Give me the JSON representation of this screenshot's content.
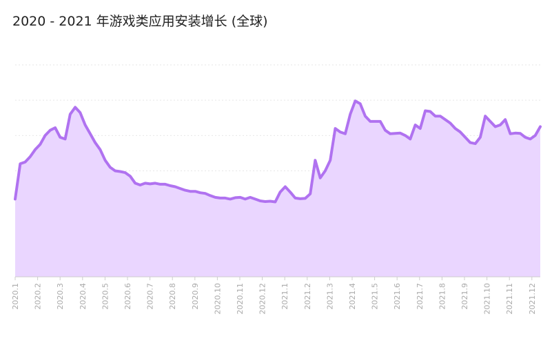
{
  "chart_data": {
    "type": "area",
    "title": "2020 - 2021 年游戏类应用安装增长 (全球)",
    "xlabel": "",
    "ylabel": "",
    "grid": true,
    "legend": "none",
    "color": "#b072f0",
    "fill_color": "#ead6ff",
    "x_ticks": [
      "2020.1",
      "2020.2",
      "2020.3",
      "2020.4",
      "2020.5",
      "2020.6",
      "2020.7",
      "2020.8",
      "2020.9",
      "2020.10",
      "2020.11",
      "2020.12",
      "2021.1",
      "2021.2",
      "2021.3",
      "2021.4",
      "2021.5",
      "2021.6",
      "2021.7",
      "2021.8",
      "2021.9",
      "2021.10",
      "2021.11",
      "2021.12"
    ],
    "ylim": [
      0,
      6
    ],
    "series": [
      {
        "name": "",
        "values": [
          2.2,
          3.2,
          3.25,
          3.4,
          3.6,
          3.75,
          4.0,
          4.15,
          4.22,
          3.95,
          3.9,
          4.6,
          4.8,
          4.65,
          4.3,
          4.05,
          3.8,
          3.6,
          3.3,
          3.1,
          3.0,
          2.98,
          2.95,
          2.85,
          2.65,
          2.6,
          2.65,
          2.63,
          2.65,
          2.62,
          2.62,
          2.58,
          2.55,
          2.5,
          2.45,
          2.42,
          2.42,
          2.38,
          2.36,
          2.3,
          2.25,
          2.23,
          2.23,
          2.2,
          2.24,
          2.25,
          2.2,
          2.25,
          2.2,
          2.15,
          2.13,
          2.14,
          2.12,
          2.4,
          2.55,
          2.4,
          2.23,
          2.21,
          2.22,
          2.35,
          3.3,
          2.8,
          3.0,
          3.3,
          4.2,
          4.1,
          4.05,
          4.6,
          4.98,
          4.9,
          4.55,
          4.4,
          4.4,
          4.4,
          4.15,
          4.05,
          4.06,
          4.07,
          4.0,
          3.9,
          4.3,
          4.2,
          4.7,
          4.68,
          4.55,
          4.55,
          4.45,
          4.35,
          4.2,
          4.1,
          3.95,
          3.8,
          3.77,
          3.95,
          4.55,
          4.4,
          4.25,
          4.3,
          4.45,
          4.05,
          4.07,
          4.06,
          3.95,
          3.9,
          4.0,
          4.25
        ]
      }
    ]
  }
}
